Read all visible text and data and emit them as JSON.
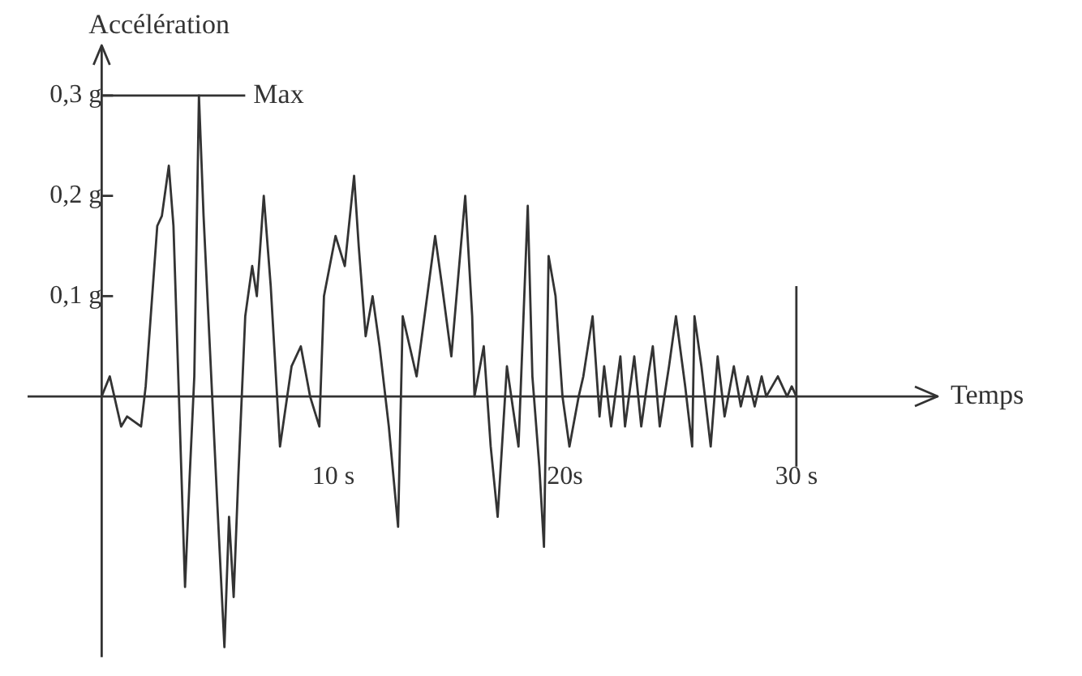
{
  "chart_data": {
    "type": "line",
    "xlabel": "Temps",
    "ylabel": "Accélération",
    "xlim": [
      -3.2,
      36.1
    ],
    "ylim": [
      -0.26,
      0.35
    ],
    "xticks": [
      {
        "value": 10,
        "label": "10 s"
      },
      {
        "value": 20,
        "label": "20s"
      },
      {
        "value": 30,
        "label": "30 s"
      }
    ],
    "yticks": [
      {
        "value": 0.1,
        "label": "0,1 g"
      },
      {
        "value": 0.2,
        "label": "0,2 g"
      },
      {
        "value": 0.3,
        "label": "0,3 g"
      }
    ],
    "ref_lines": [
      {
        "axis": "y",
        "value": 0.3,
        "label": "Max"
      },
      {
        "axis": "x",
        "value": 30,
        "label": null
      }
    ],
    "grid": false,
    "legend": false,
    "marker": "none",
    "line_style": "solid",
    "series": [
      {
        "color": "#333333",
        "x": [
          0,
          0.35,
          0.84,
          1.1,
          1.7,
          1.9,
          2.4,
          2.6,
          2.9,
          3.1,
          3.6,
          3.8,
          4.0,
          4.2,
          4.4,
          5.0,
          5.3,
          5.5,
          5.7,
          5.9,
          6.2,
          6.5,
          6.7,
          7.0,
          7.3,
          7.7,
          8.2,
          8.6,
          9.0,
          9.4,
          9.6,
          10.1,
          10.5,
          10.9,
          11.1,
          11.4,
          11.7,
          12.0,
          12.4,
          12.8,
          13.0,
          13.3,
          13.6,
          14.0,
          14.4,
          14.7,
          15.1,
          15.7,
          16.0,
          16.1,
          16.5,
          16.8,
          17.1,
          17.5,
          18.0,
          18.4,
          18.6,
          18.9,
          19.1,
          19.3,
          19.6,
          19.9,
          20.2,
          20.6,
          20.8,
          21.2,
          21.5,
          21.7,
          22.0,
          22.4,
          22.6,
          23.0,
          23.3,
          23.6,
          23.8,
          24.1,
          24.5,
          24.8,
          25.2,
          25.5,
          25.6,
          25.9,
          26.3,
          26.6,
          26.9,
          27.3,
          27.6,
          27.9,
          28.2,
          28.5,
          28.7,
          29.2,
          29.6,
          29.8,
          30.0
        ],
        "values": [
          0,
          0.02,
          -0.03,
          -0.02,
          -0.03,
          0.01,
          0.17,
          0.18,
          0.23,
          0.17,
          -0.19,
          -0.08,
          0.02,
          0.3,
          0.18,
          -0.11,
          -0.25,
          -0.12,
          -0.2,
          -0.08,
          0.08,
          0.13,
          0.1,
          0.2,
          0.11,
          -0.05,
          0.03,
          0.05,
          0,
          -0.03,
          0.1,
          0.16,
          0.13,
          0.22,
          0.15,
          0.06,
          0.1,
          0.05,
          -0.03,
          -0.13,
          0.08,
          0.05,
          0.02,
          0.09,
          0.16,
          0.11,
          0.04,
          0.2,
          0.08,
          0,
          0.05,
          -0.05,
          -0.12,
          0.03,
          -0.05,
          0.19,
          0.02,
          -0.07,
          -0.15,
          0.14,
          0.1,
          0,
          -0.05,
          0,
          0.02,
          0.08,
          -0.02,
          0.03,
          -0.03,
          0.04,
          -0.03,
          0.04,
          -0.03,
          0.02,
          0.05,
          -0.03,
          0.03,
          0.08,
          0.01,
          -0.05,
          0.08,
          0.03,
          -0.05,
          0.04,
          -0.02,
          0.03,
          -0.01,
          0.02,
          -0.01,
          0.02,
          0,
          0.02,
          0,
          0.01,
          0
        ]
      }
    ]
  }
}
